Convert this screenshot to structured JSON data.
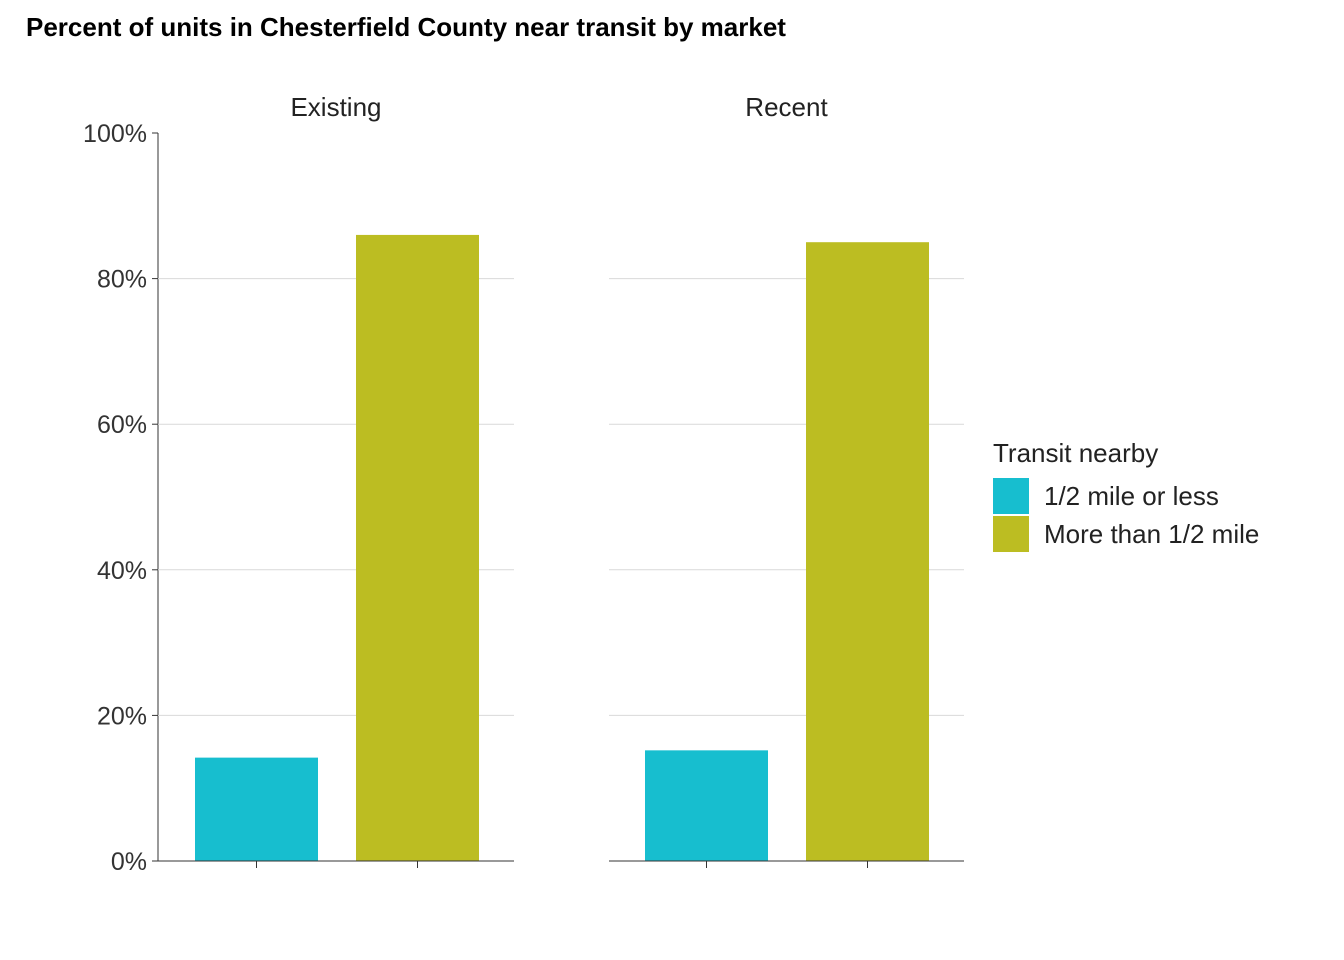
{
  "chart_data": {
    "type": "bar",
    "title": "Percent of units in Chesterfield County near transit by market",
    "ylim": [
      0,
      100
    ],
    "y_ticks": [
      "0%",
      "20%",
      "40%",
      "60%",
      "80%",
      "100%"
    ],
    "y_tick_values": [
      0,
      20,
      40,
      60,
      80,
      100
    ],
    "grid": true,
    "legend_position": "right",
    "legend_title": "Transit nearby",
    "series": [
      {
        "name": "1/2 mile or less",
        "color": "#17becf"
      },
      {
        "name": "More than 1/2 mile",
        "color": "#bcbd22"
      }
    ],
    "panels": [
      {
        "name": "Existing",
        "values": [
          14.2,
          86.0
        ]
      },
      {
        "name": "Recent",
        "values": [
          15.2,
          85.0
        ]
      }
    ]
  }
}
